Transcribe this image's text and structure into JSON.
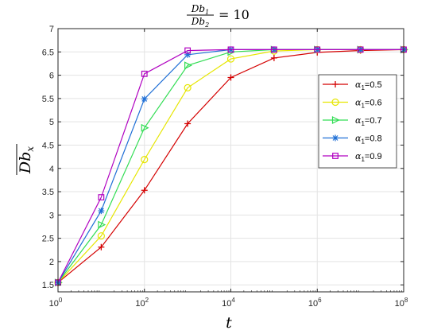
{
  "chart_data": {
    "type": "line",
    "title": {
      "numerator": "Db",
      "numerator_sub": "1",
      "denominator": "Db",
      "denominator_sub": "2",
      "equals": "= 10"
    },
    "xlabel": "t",
    "ylabel": "Db",
    "ylabel_sub": "x",
    "x_scale": "log",
    "xlim": [
      1,
      100000000
    ],
    "ylim": [
      1.35,
      7
    ],
    "x": [
      1,
      10,
      100,
      1000,
      10000,
      100000,
      1000000,
      10000000,
      100000000
    ],
    "x_ticks": [
      {
        "value": 1,
        "base": "10",
        "exp": "0"
      },
      {
        "value": 100,
        "base": "10",
        "exp": "2"
      },
      {
        "value": 10000,
        "base": "10",
        "exp": "4"
      },
      {
        "value": 1000000,
        "base": "10",
        "exp": "6"
      },
      {
        "value": 100000000,
        "base": "10",
        "exp": "8"
      }
    ],
    "y_ticks": [
      "1.5",
      "2",
      "2.5",
      "3",
      "3.5",
      "4",
      "4.5",
      "5",
      "5.5",
      "6",
      "6.5",
      "7"
    ],
    "grid": true,
    "legend_position": "right",
    "series": [
      {
        "name_symbol": "α",
        "name_sub": "1",
        "name_value": "=0.5",
        "color": "#d40000",
        "marker": "plus",
        "values": [
          1.55,
          2.31,
          3.53,
          4.96,
          5.95,
          6.37,
          6.49,
          6.53,
          6.55
        ]
      },
      {
        "name_symbol": "α",
        "name_sub": "1",
        "name_value": "=0.6",
        "color": "#e6e600",
        "marker": "circle",
        "values": [
          1.55,
          2.55,
          4.19,
          5.73,
          6.35,
          6.52,
          6.55,
          6.55,
          6.55
        ]
      },
      {
        "name_symbol": "α",
        "name_sub": "1",
        "name_value": "=0.7",
        "color": "#33dd55",
        "marker": "triangle-right",
        "values": [
          1.55,
          2.79,
          4.87,
          6.21,
          6.5,
          6.55,
          6.55,
          6.55,
          6.55
        ]
      },
      {
        "name_symbol": "α",
        "name_sub": "1",
        "name_value": "=0.8",
        "color": "#1f6fd6",
        "marker": "asterisk",
        "values": [
          1.55,
          3.09,
          5.49,
          6.44,
          6.55,
          6.55,
          6.55,
          6.55,
          6.55
        ]
      },
      {
        "name_symbol": "α",
        "name_sub": "1",
        "name_value": "=0.9",
        "color": "#b000c0",
        "marker": "square",
        "values": [
          1.55,
          3.38,
          6.03,
          6.53,
          6.55,
          6.55,
          6.55,
          6.55,
          6.55
        ]
      }
    ]
  }
}
